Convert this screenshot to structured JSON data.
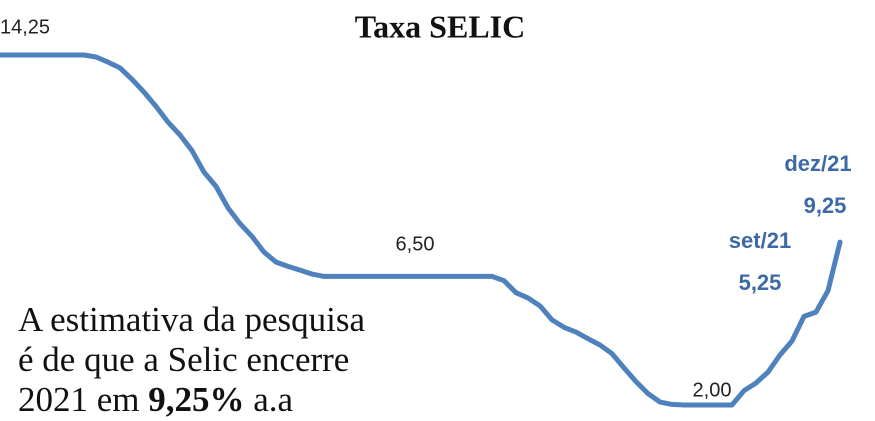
{
  "chart_data": {
    "type": "line",
    "title": "Taxa SELIC",
    "color": "#4f81bd",
    "values": [
      14.25,
      14.25,
      14.25,
      14.25,
      14.25,
      14.25,
      14.25,
      14.25,
      14.18,
      14.0,
      13.8,
      13.4,
      12.95,
      12.45,
      11.9,
      11.45,
      10.9,
      10.15,
      9.65,
      8.9,
      8.35,
      7.9,
      7.35,
      7.0,
      6.85,
      6.72,
      6.58,
      6.5,
      6.5,
      6.5,
      6.5,
      6.5,
      6.5,
      6.5,
      6.5,
      6.5,
      6.5,
      6.5,
      6.5,
      6.5,
      6.5,
      6.5,
      6.35,
      5.93,
      5.75,
      5.47,
      4.98,
      4.72,
      4.55,
      4.32,
      4.1,
      3.8,
      3.3,
      2.82,
      2.4,
      2.1,
      2.02,
      2.0,
      2.0,
      2.0,
      2.0,
      2.0,
      2.5,
      2.77,
      3.15,
      3.75,
      4.24,
      5.1,
      5.25,
      6.0,
      7.7
    ],
    "annotations": [
      {
        "text": "14,25",
        "value": 14.25
      },
      {
        "text": "6,50",
        "value": 6.5
      },
      {
        "text": "2,00",
        "value": 2.0
      },
      {
        "text": "set/21",
        "value_text": "5,25",
        "value": 5.25
      },
      {
        "text": "dez/21",
        "value_text": "9,25",
        "value": 9.25
      }
    ],
    "note": {
      "lines": [
        "A estimativa da pesquisa",
        "é de que a Selic encerre"
      ],
      "last_line": [
        "2021 em",
        "9,25%",
        "a.a"
      ]
    }
  }
}
